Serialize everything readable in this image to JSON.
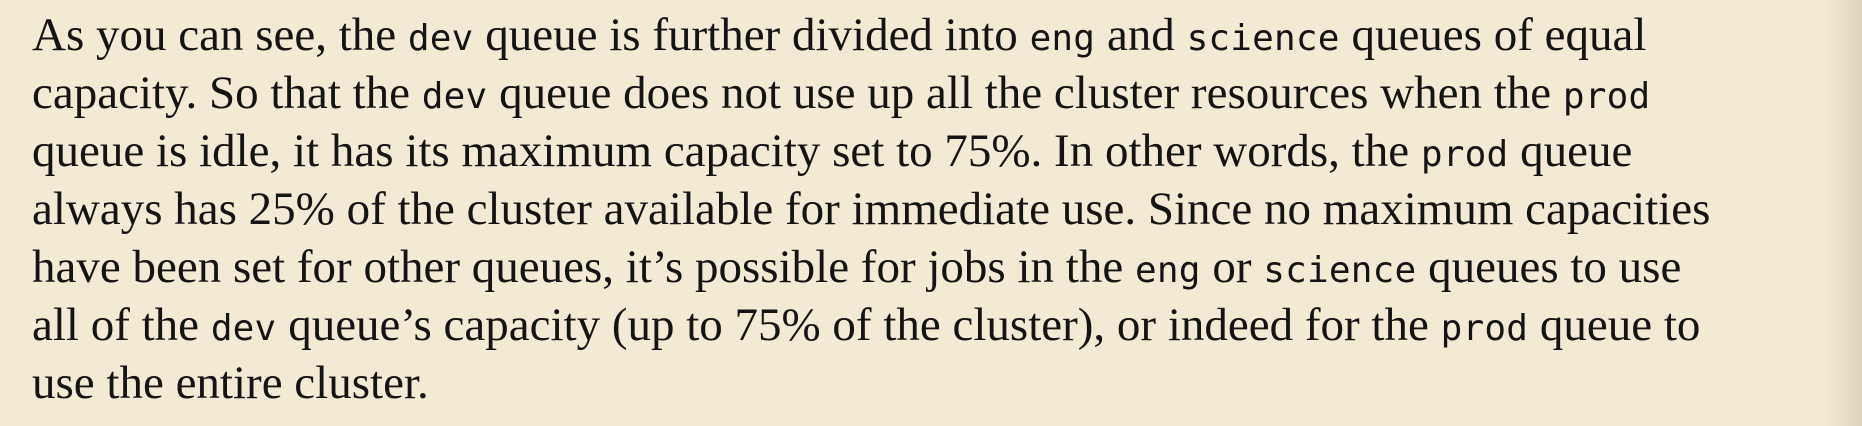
{
  "paragraph": {
    "lines": [
      [
        {
          "t": "As you can see, the "
        },
        {
          "c": "dev"
        },
        {
          "t": " queue is further divided into "
        },
        {
          "c": "eng"
        },
        {
          "t": " and "
        },
        {
          "c": "science"
        },
        {
          "t": " queues of equal"
        }
      ],
      [
        {
          "t": "capacity. So that the "
        },
        {
          "c": "dev"
        },
        {
          "t": " queue does not use up all the cluster resources when the "
        },
        {
          "c": "prod"
        }
      ],
      [
        {
          "t": "queue is idle, it has its maximum capacity set to 75%. In other words, the "
        },
        {
          "c": "prod"
        },
        {
          "t": " queue"
        }
      ],
      [
        {
          "t": "always has 25% of the cluster available for immediate use. Since no maximum capacities"
        }
      ],
      [
        {
          "t": "have been set for other queues, it’s possible for jobs in the "
        },
        {
          "c": "eng"
        },
        {
          "t": " or "
        },
        {
          "c": "science"
        },
        {
          "t": " queues to use"
        }
      ],
      [
        {
          "t": "all of the "
        },
        {
          "c": "dev"
        },
        {
          "t": " queue’s capacity (up to 75% of the cluster), or indeed for the "
        },
        {
          "c": "prod"
        },
        {
          "t": " queue to"
        }
      ],
      [
        {
          "t": "use the entire cluster."
        }
      ]
    ]
  }
}
